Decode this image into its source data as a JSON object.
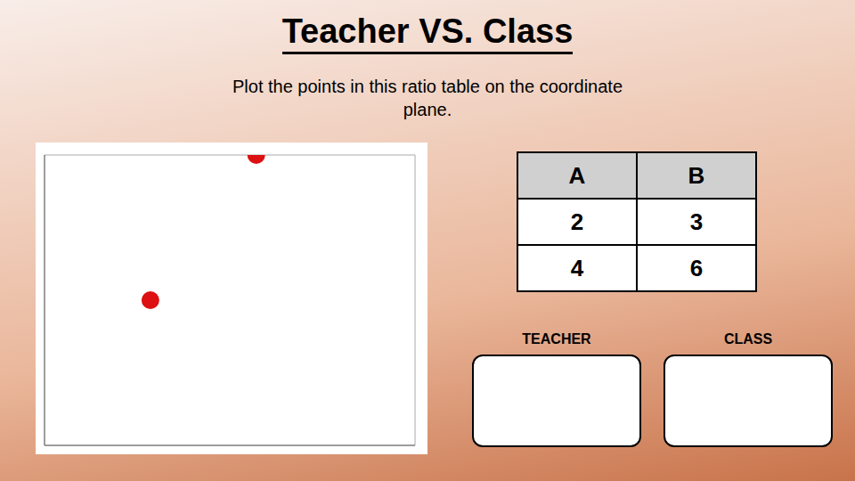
{
  "chart_data": {
    "type": "scatter",
    "title": "Teacher VS. Class",
    "subtitle": [
      "Plot the points in this ratio table on the coordinate",
      "plane."
    ],
    "x": [
      2,
      4
    ],
    "values": [
      3,
      6
    ],
    "color": "#dd1111",
    "xlim": [
      0,
      7
    ],
    "ylim": [
      0,
      6
    ],
    "xticks": [
      0,
      1,
      2,
      3,
      4,
      5,
      6,
      7
    ],
    "yticks": [
      0,
      1,
      2,
      3,
      4,
      5,
      6
    ],
    "grid": true,
    "tick_labels": false,
    "table": {
      "headers": [
        "A",
        "B"
      ],
      "rows": [
        [
          2,
          3
        ],
        [
          4,
          6
        ]
      ]
    },
    "annotations": [
      "TEACHER",
      "CLASS"
    ]
  }
}
